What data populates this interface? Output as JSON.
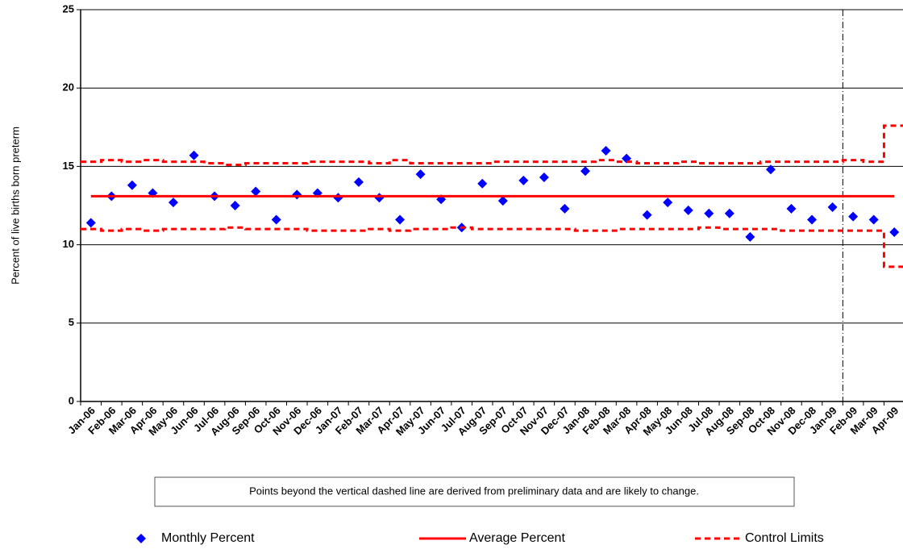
{
  "chart_data": {
    "type": "control",
    "y_label": "Percent of live births born preterm",
    "annotation": "Points beyond the vertical dashed line are derived from preliminary data and are likely to change.",
    "categories": [
      "Jan-06",
      "Feb-06",
      "Mar-06",
      "Apr-06",
      "May-06",
      "Jun-06",
      "Jul-06",
      "Aug-06",
      "Sep-06",
      "Oct-06",
      "Nov-06",
      "Dec-06",
      "Jan-07",
      "Feb-07",
      "Mar-07",
      "Apr-07",
      "May-07",
      "Jun-07",
      "Jul-07",
      "Aug-07",
      "Sep-07",
      "Oct-07",
      "Nov-07",
      "Dec-07",
      "Jan-08",
      "Feb-08",
      "Mar-08",
      "Apr-08",
      "May-08",
      "Jun-08",
      "Jul-08",
      "Aug-08",
      "Sep-08",
      "Oct-08",
      "Nov-08",
      "Dec-08",
      "Jan-09",
      "Feb-09",
      "Mar-09",
      "Apr-09"
    ],
    "series": [
      {
        "name": "Monthly Percent",
        "color": "#0000ff",
        "values": [
          11.4,
          13.1,
          13.8,
          13.3,
          12.7,
          15.7,
          13.1,
          12.5,
          13.4,
          11.6,
          13.2,
          13.3,
          13.0,
          14.0,
          13.0,
          11.6,
          14.5,
          12.9,
          11.1,
          13.9,
          12.8,
          14.1,
          14.3,
          12.3,
          14.7,
          16.0,
          15.5,
          11.9,
          12.7,
          12.2,
          12.0,
          12.0,
          10.5,
          14.8,
          12.3,
          11.6,
          12.4,
          11.8,
          11.6,
          10.8
        ]
      },
      {
        "name": "Average Percent",
        "color": "#ff0000",
        "values": [
          13.1,
          13.1,
          13.1,
          13.1,
          13.1,
          13.1,
          13.1,
          13.1,
          13.1,
          13.1,
          13.1,
          13.1,
          13.1,
          13.1,
          13.1,
          13.1,
          13.1,
          13.1,
          13.1,
          13.1,
          13.1,
          13.1,
          13.1,
          13.1,
          13.1,
          13.1,
          13.1,
          13.1,
          13.1,
          13.1,
          13.1,
          13.1,
          13.1,
          13.1,
          13.1,
          13.1,
          13.1,
          13.1,
          13.1,
          13.1
        ]
      },
      {
        "name": "Control Limits",
        "color": "#ff0000",
        "upper": [
          15.3,
          15.4,
          15.3,
          15.4,
          15.3,
          15.3,
          15.2,
          15.1,
          15.2,
          15.2,
          15.2,
          15.3,
          15.3,
          15.3,
          15.2,
          15.4,
          15.2,
          15.2,
          15.2,
          15.2,
          15.3,
          15.3,
          15.3,
          15.3,
          15.3,
          15.4,
          15.3,
          15.2,
          15.2,
          15.3,
          15.2,
          15.2,
          15.2,
          15.3,
          15.3,
          15.3,
          15.3,
          15.4,
          15.3,
          17.6
        ],
        "lower": [
          11.0,
          10.9,
          11.0,
          10.9,
          11.0,
          11.0,
          11.0,
          11.1,
          11.0,
          11.0,
          11.0,
          10.9,
          10.9,
          10.9,
          11.0,
          10.9,
          11.0,
          11.0,
          11.1,
          11.0,
          11.0,
          11.0,
          11.0,
          11.0,
          10.9,
          10.9,
          11.0,
          11.0,
          11.0,
          11.0,
          11.1,
          11.0,
          11.0,
          11.0,
          10.9,
          10.9,
          10.9,
          10.9,
          10.9,
          8.6
        ]
      }
    ],
    "preliminary_from_index": 37,
    "ylim": [
      0,
      25
    ],
    "yticks": [
      0,
      5,
      10,
      15,
      20,
      25
    ],
    "grid": true
  }
}
